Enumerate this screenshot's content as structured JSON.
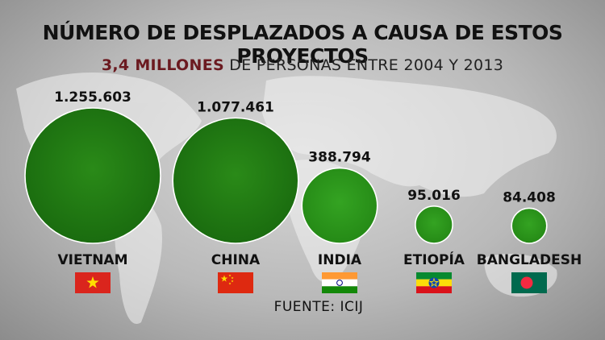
{
  "title": "NÚMERO DE DESPLAZADOS A CAUSA DE ESTOS PROYECTOS",
  "subtitle": {
    "highlight": "3,4 MILLONES",
    "rest": " DE PERSONAS ENTRE 2004 Y 2013"
  },
  "source": "FUENTE: ICIJ",
  "colors": {
    "bubble": "#1e7a12",
    "bubble_dark": "#14560c",
    "highlight": "#6b1a20"
  },
  "chart_data": {
    "type": "bubble",
    "categories": [
      "VIETNAM",
      "CHINA",
      "INDIA",
      "ETIOPÍA",
      "BANGLADESH"
    ],
    "values": [
      1255603,
      1077461,
      388794,
      95016,
      84408
    ],
    "value_labels": [
      "1.255.603",
      "1.077.461",
      "388.794",
      "95.016",
      "84.408"
    ],
    "flags": [
      "vietnam-flag",
      "china-flag",
      "india-flag",
      "ethiopia-flag",
      "bangladesh-flag"
    ]
  }
}
